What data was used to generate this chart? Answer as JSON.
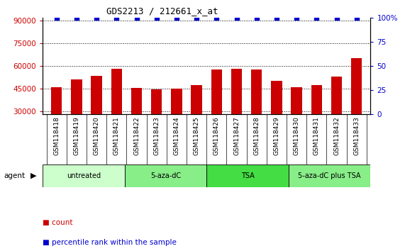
{
  "title": "GDS2213 / 212661_x_at",
  "samples": [
    "GSM118418",
    "GSM118419",
    "GSM118420",
    "GSM118421",
    "GSM118422",
    "GSM118423",
    "GSM118424",
    "GSM118425",
    "GSM118426",
    "GSM118427",
    "GSM118428",
    "GSM118429",
    "GSM118430",
    "GSM118431",
    "GSM118432",
    "GSM118433"
  ],
  "counts": [
    46000,
    51000,
    53500,
    58000,
    45500,
    44500,
    45000,
    47500,
    57500,
    58000,
    57500,
    50000,
    46000,
    47500,
    53000,
    65000
  ],
  "percentile_ranks": [
    100,
    100,
    100,
    100,
    100,
    100,
    100,
    100,
    100,
    100,
    100,
    100,
    100,
    100,
    100,
    100
  ],
  "bar_color": "#cc0000",
  "dot_color": "#0000cc",
  "ylim_left": [
    28000,
    92000
  ],
  "ylim_right": [
    0,
    100
  ],
  "yticks_left": [
    30000,
    45000,
    60000,
    75000,
    90000
  ],
  "yticks_right": [
    0,
    25,
    50,
    75,
    100
  ],
  "ytick_labels_right": [
    "0",
    "25",
    "50",
    "75",
    "100%"
  ],
  "groups": [
    {
      "label": "untreated",
      "start": 0,
      "end": 4,
      "color": "#ccffcc"
    },
    {
      "label": "5-aza-dC",
      "start": 4,
      "end": 8,
      "color": "#88ee88"
    },
    {
      "label": "TSA",
      "start": 8,
      "end": 12,
      "color": "#44dd44"
    },
    {
      "label": "5-aza-dC plus TSA",
      "start": 12,
      "end": 16,
      "color": "#88ee88"
    }
  ],
  "group_row_label": "agent",
  "legend_count_label": "count",
  "legend_pct_label": "percentile rank within the sample",
  "background_color": "#ffffff",
  "tick_label_color_left": "#cc0000",
  "tick_label_color_right": "#0000cc",
  "title_color": "#000000",
  "xtick_bg_color": "#cccccc",
  "bar_width": 0.55,
  "dot_size": 18
}
